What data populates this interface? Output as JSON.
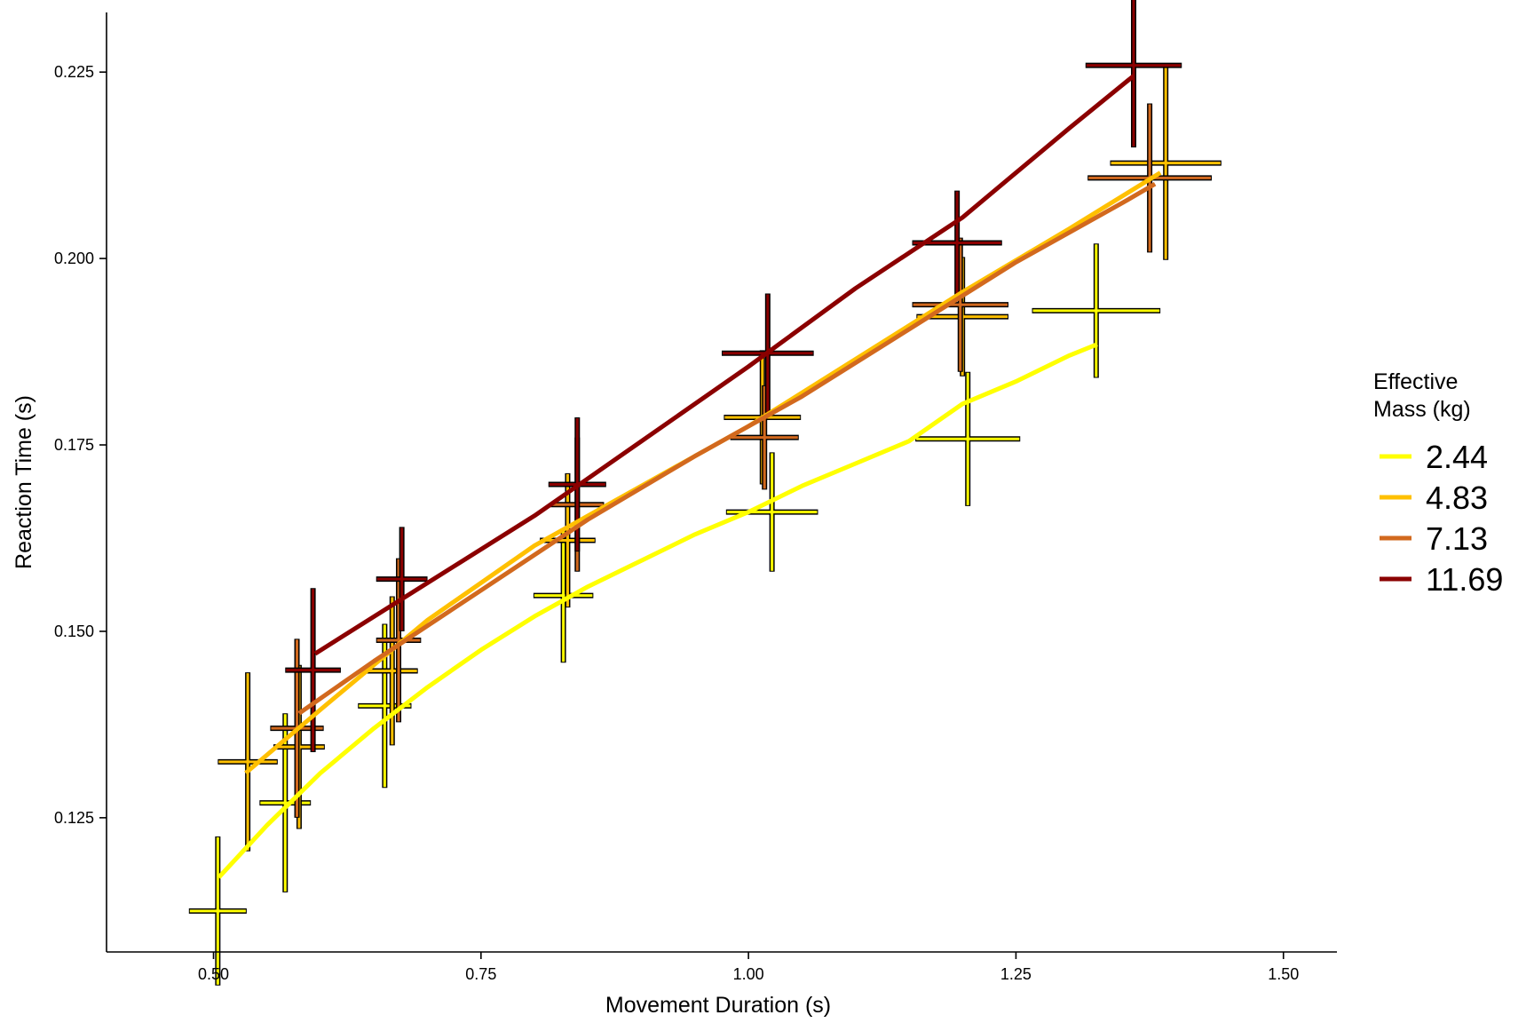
{
  "chart_data": {
    "type": "line",
    "xlabel": "Movement Duration (s)",
    "ylabel": "Reaction Time (s)",
    "xlim": [
      0.4,
      1.55
    ],
    "ylim": [
      0.107,
      0.233
    ],
    "x_ticks": [
      0.5,
      0.75,
      1.0,
      1.25,
      1.5
    ],
    "x_tick_labels": [
      "0.50",
      "0.75",
      "1.00",
      "1.25",
      "1.50"
    ],
    "y_ticks": [
      0.125,
      0.15,
      0.175,
      0.2,
      0.225
    ],
    "y_tick_labels": [
      "0.125",
      "0.150",
      "0.175",
      "0.200",
      "0.225"
    ],
    "grid": false,
    "legend_title": "Effective\nMass (kg)",
    "legend_position": "right",
    "series": [
      {
        "name": "2.44",
        "color": "#FFFF00",
        "line": [
          [
            0.505,
            0.117
          ],
          [
            0.55,
            0.124
          ],
          [
            0.6,
            0.131
          ],
          [
            0.65,
            0.137
          ],
          [
            0.7,
            0.1425
          ],
          [
            0.75,
            0.1475
          ],
          [
            0.8,
            0.152
          ],
          [
            0.85,
            0.156
          ],
          [
            0.9,
            0.1595
          ],
          [
            0.95,
            0.163
          ],
          [
            1.0,
            0.166
          ],
          [
            1.05,
            0.1695
          ],
          [
            1.1,
            0.1725
          ],
          [
            1.15,
            0.1755
          ],
          [
            1.2,
            0.1805
          ],
          [
            1.25,
            0.1835
          ],
          [
            1.3,
            0.187
          ],
          [
            1.326,
            0.1885
          ]
        ],
        "points": [
          {
            "x": 0.504,
            "y": 0.1125,
            "xerr": 0.027,
            "yerr": 0.001
          },
          {
            "x": 0.567,
            "y": 0.127,
            "xerr": 0.024,
            "yerr": 0.0012
          },
          {
            "x": 0.66,
            "y": 0.14,
            "xerr": 0.025,
            "yerr": 0.0011
          },
          {
            "x": 0.827,
            "y": 0.1548,
            "xerr": 0.028,
            "yerr": 0.0009
          },
          {
            "x": 1.022,
            "y": 0.166,
            "xerr": 0.043,
            "yerr": 0.0008
          },
          {
            "x": 1.205,
            "y": 0.1758,
            "xerr": 0.049,
            "yerr": 0.0009
          },
          {
            "x": 1.325,
            "y": 0.193,
            "xerr": 0.06,
            "yerr": 0.0009
          }
        ]
      },
      {
        "name": "4.83",
        "color": "#FFC000",
        "line": [
          [
            0.53,
            0.131
          ],
          [
            0.6,
            0.1395
          ],
          [
            0.7,
            0.1515
          ],
          [
            0.8,
            0.1615
          ],
          [
            0.9,
            0.1695
          ],
          [
            1.0,
            0.1775
          ],
          [
            1.1,
            0.1865
          ],
          [
            1.2,
            0.1955
          ],
          [
            1.3,
            0.204
          ],
          [
            1.385,
            0.2115
          ]
        ],
        "points": [
          {
            "x": 0.532,
            "y": 0.1325,
            "xerr": 0.028,
            "yerr": 0.0012
          },
          {
            "x": 0.58,
            "y": 0.1345,
            "xerr": 0.024,
            "yerr": 0.0011
          },
          {
            "x": 0.667,
            "y": 0.1447,
            "xerr": 0.024,
            "yerr": 0.001
          },
          {
            "x": 0.831,
            "y": 0.1622,
            "xerr": 0.026,
            "yerr": 0.0009
          },
          {
            "x": 1.013,
            "y": 0.1787,
            "xerr": 0.036,
            "yerr": 0.0009
          },
          {
            "x": 1.2,
            "y": 0.1922,
            "xerr": 0.043,
            "yerr": 0.0008
          },
          {
            "x": 1.39,
            "y": 0.2128,
            "xerr": 0.052,
            "yerr": 0.0013
          }
        ]
      },
      {
        "name": "7.13",
        "color": "#D2691E",
        "line": [
          [
            0.58,
            0.139
          ],
          [
            0.65,
            0.146
          ],
          [
            0.75,
            0.1555
          ],
          [
            0.85,
            0.165
          ],
          [
            0.95,
            0.1735
          ],
          [
            1.05,
            0.1815
          ],
          [
            1.15,
            0.1905
          ],
          [
            1.25,
            0.1995
          ],
          [
            1.35,
            0.2075
          ],
          [
            1.38,
            0.21
          ]
        ],
        "points": [
          {
            "x": 0.578,
            "y": 0.137,
            "xerr": 0.025,
            "yerr": 0.0012
          },
          {
            "x": 0.673,
            "y": 0.1488,
            "xerr": 0.021,
            "yerr": 0.0011
          },
          {
            "x": 0.84,
            "y": 0.167,
            "xerr": 0.025,
            "yerr": 0.0009
          },
          {
            "x": 1.015,
            "y": 0.176,
            "xerr": 0.032,
            "yerr": 0.0007
          },
          {
            "x": 1.198,
            "y": 0.1938,
            "xerr": 0.045,
            "yerr": 0.0009
          },
          {
            "x": 1.375,
            "y": 0.2108,
            "xerr": 0.058,
            "yerr": 0.001
          }
        ]
      },
      {
        "name": "11.69",
        "color": "#8B0000",
        "line": [
          [
            0.595,
            0.147
          ],
          [
            0.7,
            0.1565
          ],
          [
            0.8,
            0.1655
          ],
          [
            0.9,
            0.1755
          ],
          [
            1.0,
            0.1855
          ],
          [
            1.1,
            0.196
          ],
          [
            1.2,
            0.2055
          ],
          [
            1.3,
            0.2175
          ],
          [
            1.36,
            0.2245
          ]
        ],
        "points": [
          {
            "x": 0.593,
            "y": 0.1448,
            "xerr": 0.026,
            "yerr": 0.0011
          },
          {
            "x": 0.676,
            "y": 0.157,
            "xerr": 0.024,
            "yerr": 0.0007
          },
          {
            "x": 0.84,
            "y": 0.1697,
            "xerr": 0.027,
            "yerr": 0.0009
          },
          {
            "x": 1.018,
            "y": 0.1873,
            "xerr": 0.043,
            "yerr": 0.0008
          },
          {
            "x": 1.195,
            "y": 0.2021,
            "xerr": 0.042,
            "yerr": 0.0007
          },
          {
            "x": 1.36,
            "y": 0.2259,
            "xerr": 0.045,
            "yerr": 0.0011
          }
        ]
      }
    ]
  }
}
